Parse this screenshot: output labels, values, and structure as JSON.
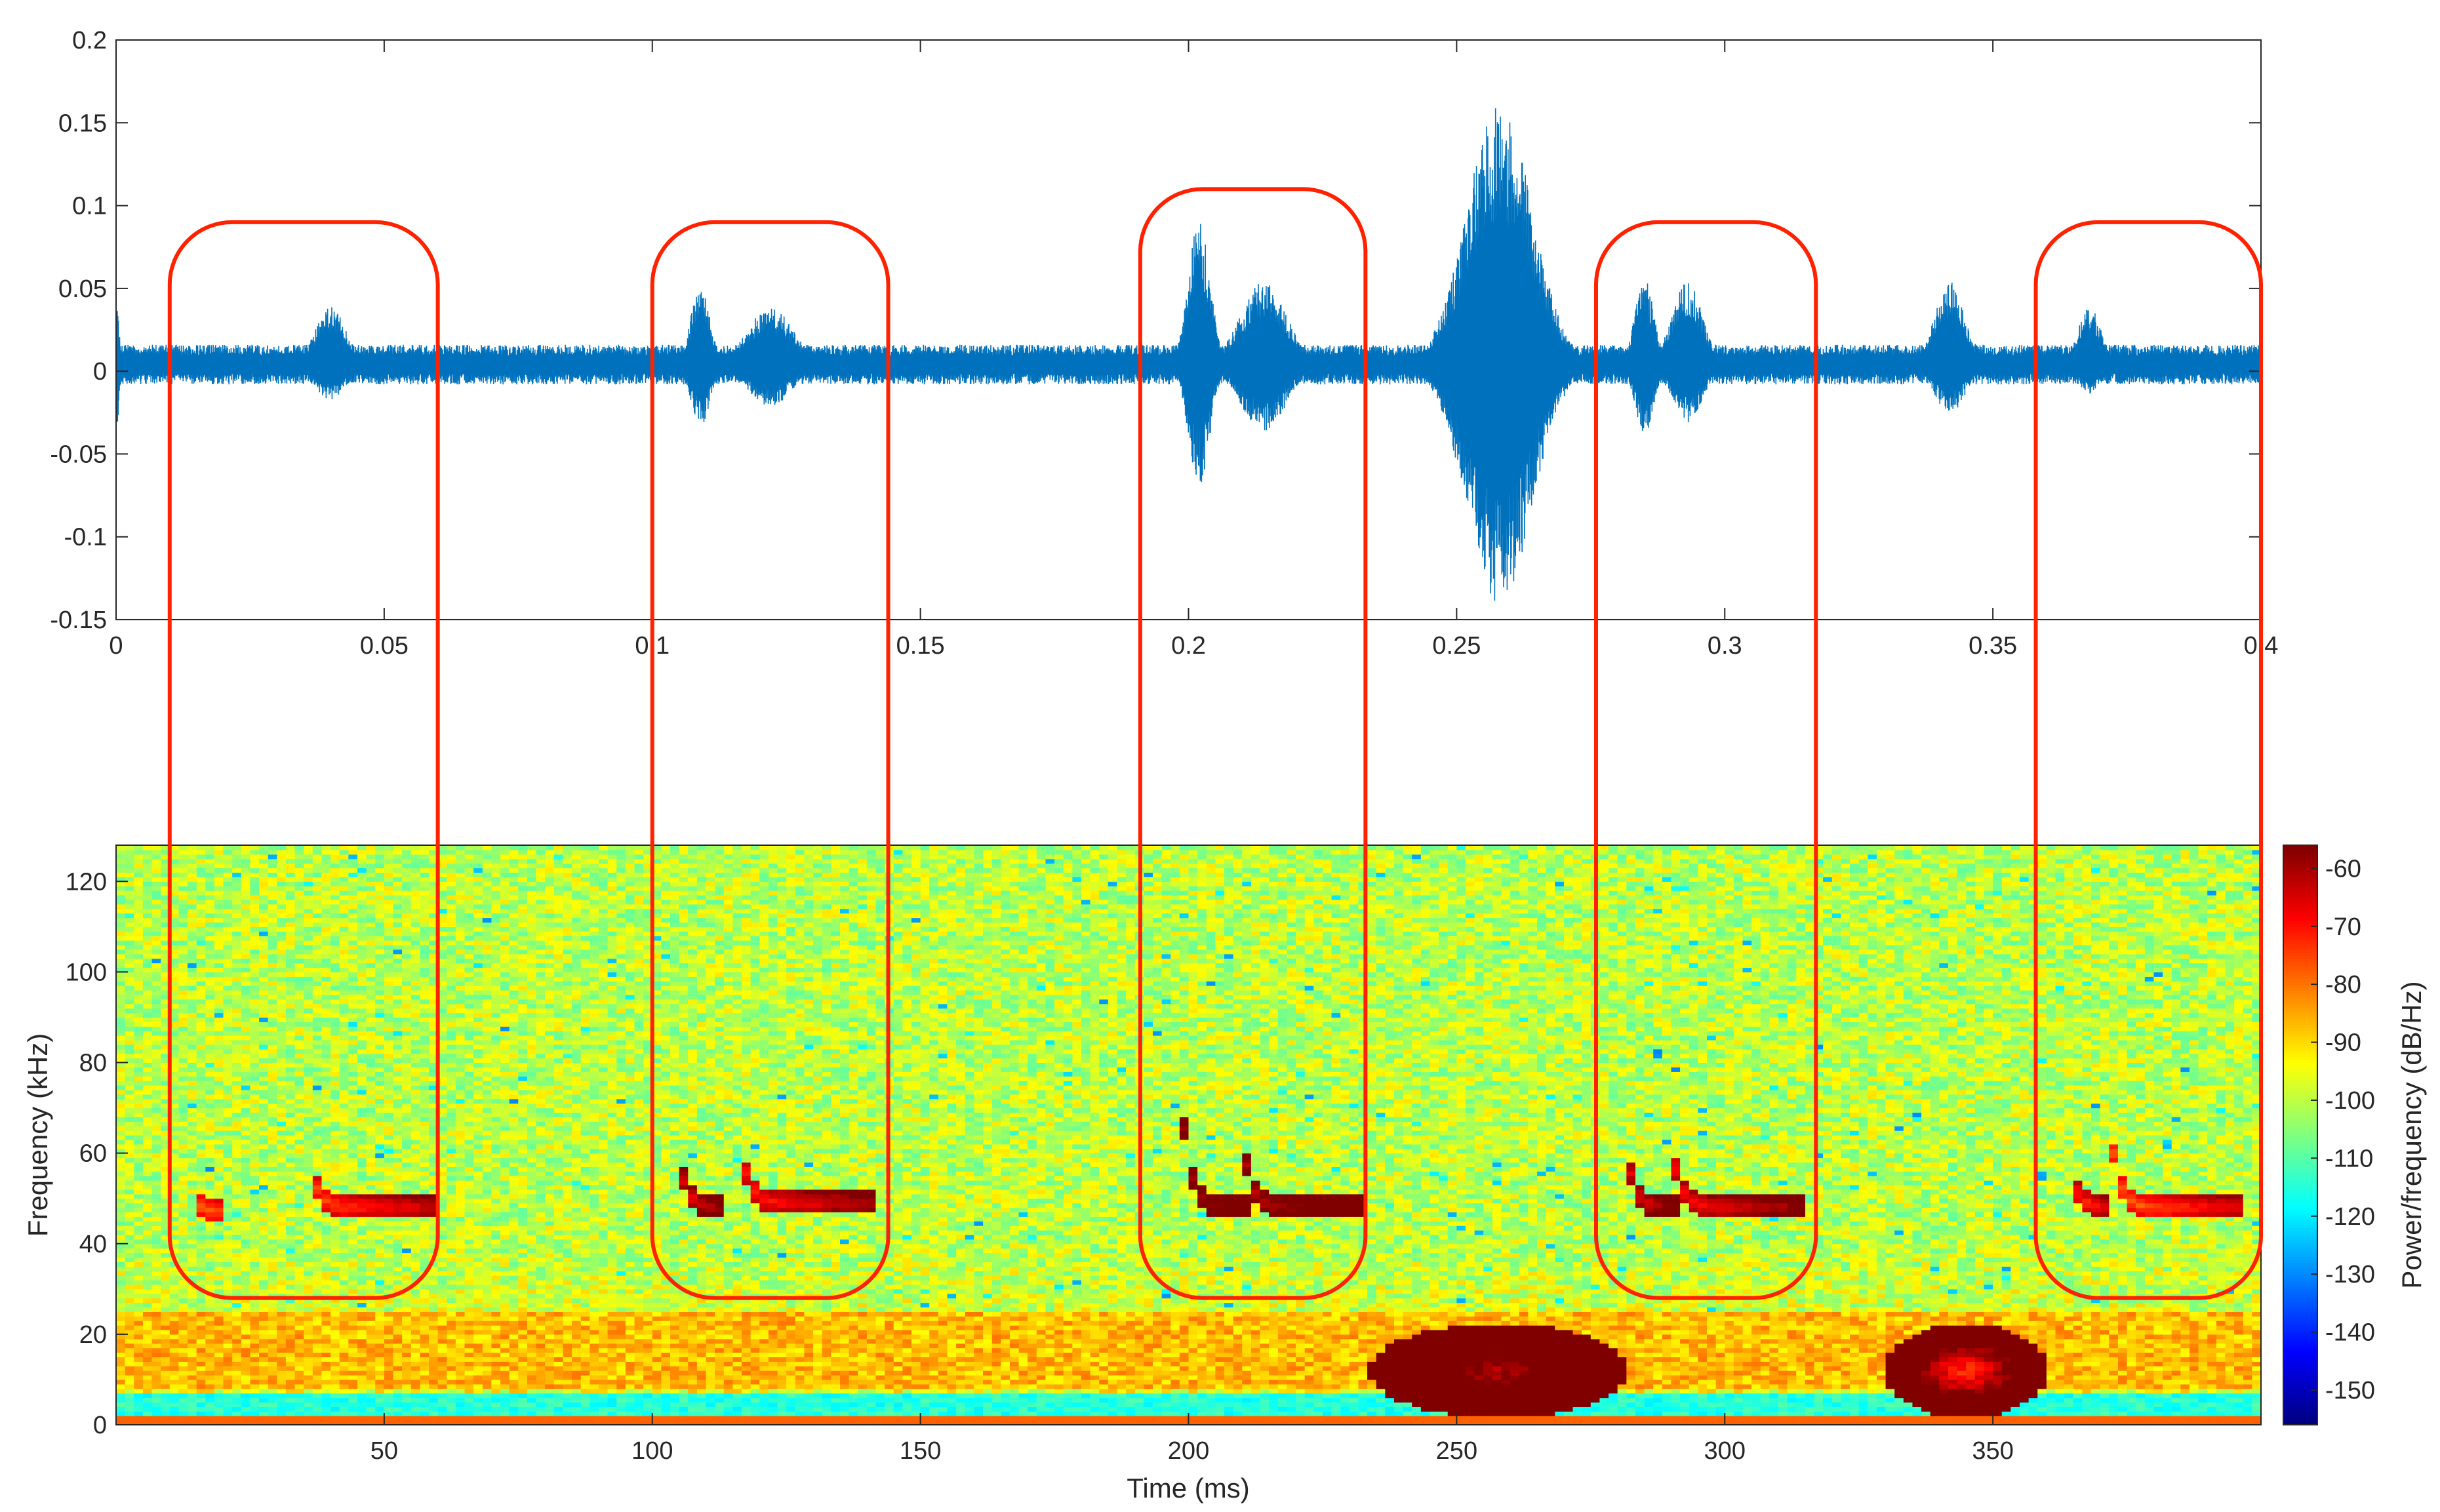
{
  "chart_data": [
    {
      "type": "line",
      "panel": "waveform",
      "title": "",
      "xlabel": "",
      "ylabel": "",
      "xlim": [
        0,
        0.4
      ],
      "ylim": [
        -0.15,
        0.2
      ],
      "x_ticks": [
        0,
        0.05,
        0.1,
        0.15,
        0.2,
        0.25,
        0.3,
        0.35,
        0.4
      ],
      "x_tick_labels": [
        "0",
        "0.05",
        "0.1",
        "0.15",
        "0.2",
        "0.25",
        "0.3",
        "0.35",
        "0.4"
      ],
      "y_ticks": [
        -0.15,
        -0.1,
        -0.05,
        0,
        0.05,
        0.1,
        0.15,
        0.2
      ],
      "y_tick_labels": [
        "-0.15",
        "-0.1",
        "-0.05",
        "0",
        "0.05",
        "0.1",
        "0.15",
        "0.2"
      ],
      "grid": false,
      "series_color": "#0072BD",
      "baseline_amplitude": 0.012,
      "bursts": [
        {
          "t": 0.0,
          "width": 0.0008,
          "peak_pos": 0.04,
          "peak_neg": -0.04
        },
        {
          "t": 0.04,
          "width": 0.004,
          "peak_pos": 0.035,
          "peak_neg": -0.022
        },
        {
          "t": 0.109,
          "width": 0.0025,
          "peak_pos": 0.05,
          "peak_neg": -0.037
        },
        {
          "t": 0.122,
          "width": 0.006,
          "peak_pos": 0.035,
          "peak_neg": -0.025
        },
        {
          "t": 0.202,
          "width": 0.0028,
          "peak_pos": 0.088,
          "peak_neg": -0.073
        },
        {
          "t": 0.214,
          "width": 0.006,
          "peak_pos": 0.05,
          "peak_neg": -0.04
        },
        {
          "t": 0.258,
          "width": 0.0085,
          "peak_pos": 0.158,
          "peak_neg": -0.145
        },
        {
          "t": 0.285,
          "width": 0.0025,
          "peak_pos": 0.052,
          "peak_neg": -0.042
        },
        {
          "t": 0.293,
          "width": 0.004,
          "peak_pos": 0.05,
          "peak_neg": -0.035
        },
        {
          "t": 0.342,
          "width": 0.004,
          "peak_pos": 0.05,
          "peak_neg": -0.03
        },
        {
          "t": 0.368,
          "width": 0.003,
          "peak_pos": 0.035,
          "peak_neg": -0.018
        }
      ]
    },
    {
      "type": "heatmap",
      "panel": "spectrogram",
      "title": "",
      "xlabel": "Time (ms)",
      "ylabel": "Frequency (kHz)",
      "xlim": [
        0,
        400
      ],
      "ylim": [
        0,
        128
      ],
      "x_ticks": [
        50,
        100,
        150,
        200,
        250,
        300,
        350
      ],
      "x_tick_labels": [
        "50",
        "100",
        "150",
        "200",
        "250",
        "300",
        "350"
      ],
      "y_ticks": [
        0,
        20,
        40,
        60,
        80,
        100,
        120
      ],
      "y_tick_labels": [
        "0",
        "20",
        "40",
        "60",
        "80",
        "100",
        "120"
      ],
      "colormap": "jet",
      "colorbar": {
        "label": "Power/frequency (dB/Hz)",
        "range": [
          -156,
          -56
        ],
        "ticks": [
          -60,
          -70,
          -80,
          -90,
          -100,
          -110,
          -120,
          -130,
          -140,
          -150
        ],
        "tick_labels": [
          "-60",
          "-70",
          "-80",
          "-90",
          "-100",
          "-110",
          "-120",
          "-130",
          "-140",
          "-150"
        ]
      },
      "noise_floor_db": -100,
      "low_freq_band": {
        "f_min": 8,
        "f_max": 25,
        "power_db": -87
      },
      "dc_band": {
        "f_min": 0,
        "f_max": 2,
        "power_db": -78
      },
      "notch_band": {
        "f_min": 2,
        "f_max": 7,
        "power_db": -115
      },
      "hotspots": [
        {
          "t_ms": 258,
          "f_khz": 12,
          "power_db": -60,
          "t_spread": 14,
          "f_spread": 6
        },
        {
          "t_ms": 345,
          "f_khz": 12,
          "power_db": -72,
          "t_spread": 9,
          "f_spread": 6
        }
      ],
      "calls": [
        {
          "t_ms": 16,
          "f_start": 50,
          "f_end": 47,
          "tail_ms": 4,
          "power_db": -78
        },
        {
          "t_ms": 38,
          "f_start": 56,
          "f_end": 48,
          "tail_ms": 22,
          "power_db": -75
        },
        {
          "t_ms": 106,
          "f_start": 62,
          "f_end": 48,
          "tail_ms": 8,
          "power_db": -66
        },
        {
          "t_ms": 118,
          "f_start": 62,
          "f_end": 49,
          "tail_ms": 24,
          "power_db": -72
        },
        {
          "t_ms": 200,
          "f_start": 75,
          "f_end": 48,
          "tail_ms": 12,
          "power_db": -60
        },
        {
          "t_ms": 211,
          "f_start": 70,
          "f_end": 48,
          "tail_ms": 22,
          "power_db": -62
        },
        {
          "t_ms": 283,
          "f_start": 62,
          "f_end": 48,
          "tail_ms": 8,
          "power_db": -66
        },
        {
          "t_ms": 291,
          "f_start": 68,
          "f_end": 48,
          "tail_ms": 24,
          "power_db": -70
        },
        {
          "t_ms": 366,
          "f_start": 55,
          "f_end": 48,
          "tail_ms": 6,
          "power_db": -72
        },
        {
          "t_ms": 374,
          "f_start": 60,
          "f_end": 48,
          "tail_ms": 22,
          "power_db": -78
        }
      ]
    }
  ],
  "highlight_windows": {
    "color": "#FF2200",
    "windows": [
      {
        "t_start": 0.01,
        "t_end": 0.06,
        "top_value": 0.09,
        "bottom_khz": 28
      },
      {
        "t_start": 0.1,
        "t_end": 0.144,
        "top_value": 0.09,
        "bottom_khz": 28
      },
      {
        "t_start": 0.191,
        "t_end": 0.233,
        "top_value": 0.11,
        "bottom_khz": 28
      },
      {
        "t_start": 0.276,
        "t_end": 0.317,
        "top_value": 0.09,
        "bottom_khz": 28
      },
      {
        "t_start": 0.358,
        "t_end": 0.4,
        "top_value": 0.09,
        "bottom_khz": 28
      }
    ]
  }
}
